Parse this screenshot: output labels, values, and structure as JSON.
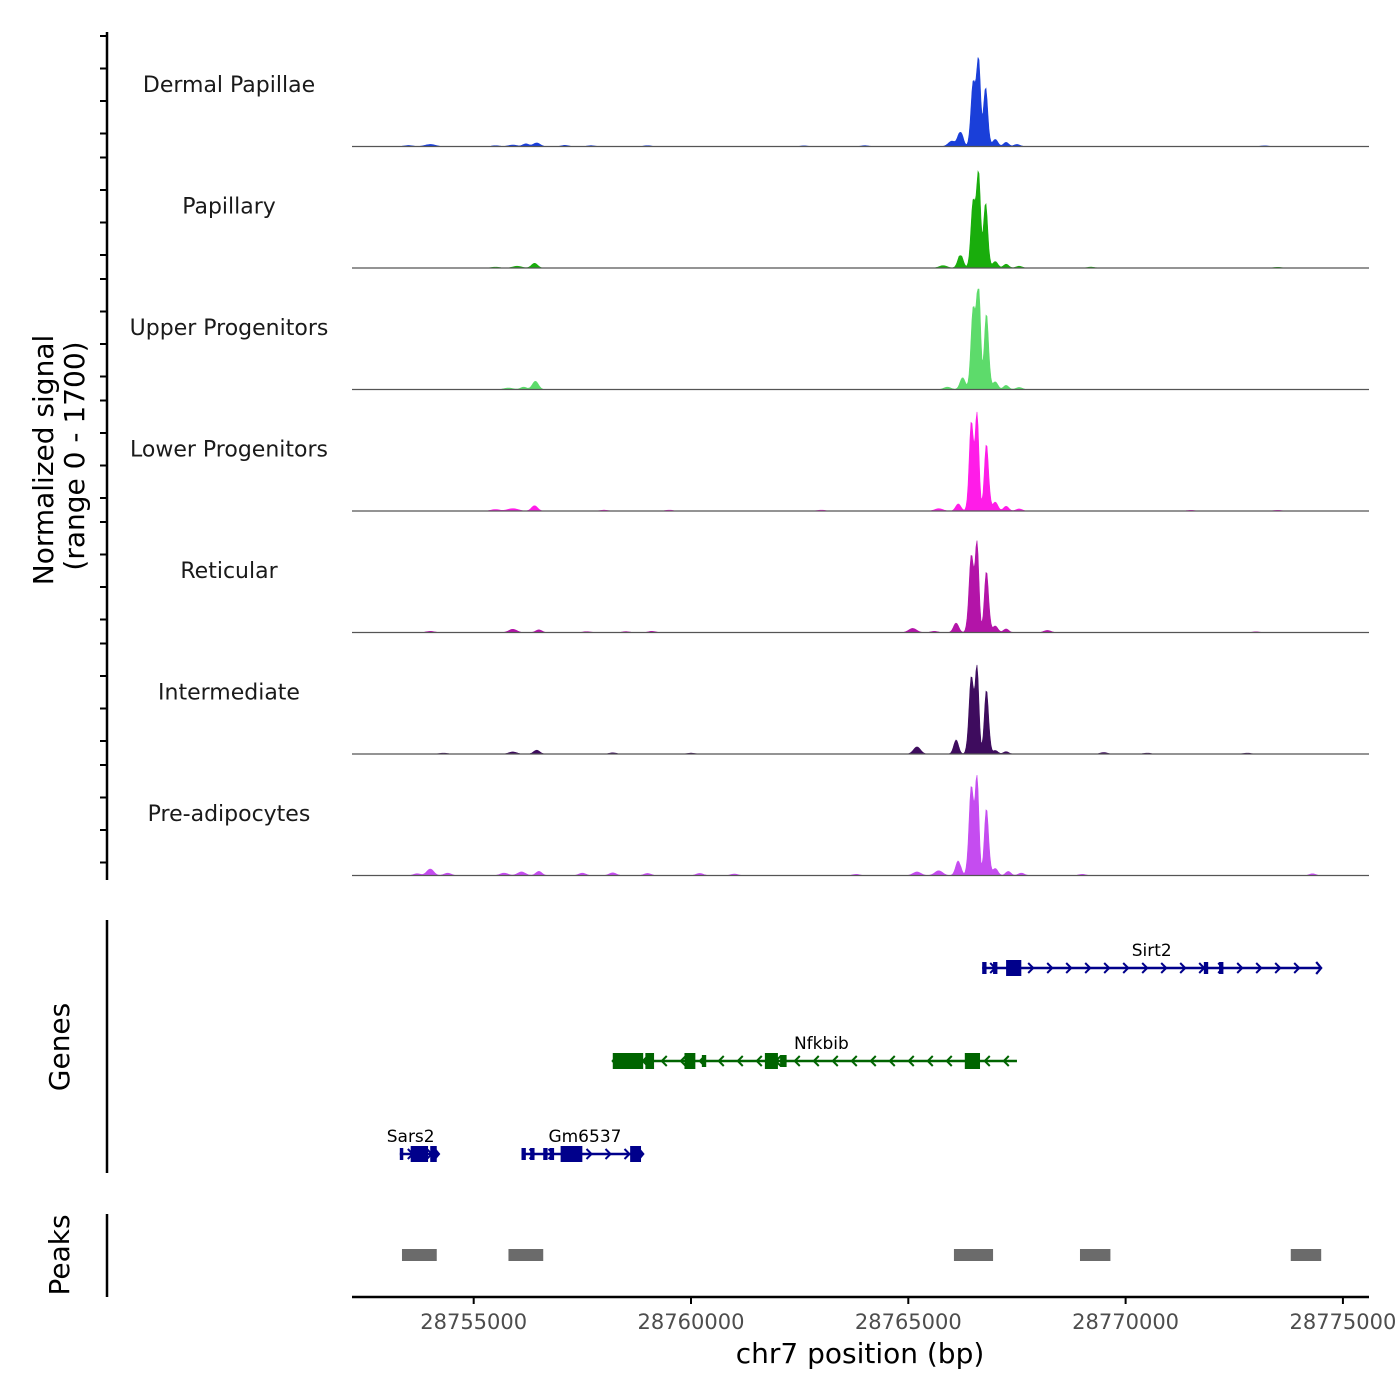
{
  "chart_data": {
    "type": "area",
    "title": "",
    "chromosome": "chr7",
    "xlabel": "chr7 position (bp)",
    "ylabel_line1": "Normalized signal",
    "ylabel_line2": "(range 0 - 1700)",
    "xlim": [
      28752200,
      28775600
    ],
    "xticks": [
      28755000,
      28760000,
      28765000,
      28770000,
      28775000
    ],
    "xtick_labels": [
      "28755000",
      "28760000",
      "28765000",
      "28770000",
      "28775000"
    ],
    "ylim": [
      0,
      1700
    ],
    "tracks": [
      {
        "name": "Dermal Papillae",
        "color": "#1a3fd9",
        "peaks": [
          {
            "center": 28753500,
            "height": 18,
            "width": 90
          },
          {
            "center": 28754000,
            "height": 35,
            "width": 120
          },
          {
            "center": 28755500,
            "height": 15,
            "width": 80
          },
          {
            "center": 28755900,
            "height": 25,
            "width": 100
          },
          {
            "center": 28756200,
            "height": 45,
            "width": 70
          },
          {
            "center": 28756450,
            "height": 60,
            "width": 80
          },
          {
            "center": 28757100,
            "height": 20,
            "width": 80
          },
          {
            "center": 28757700,
            "height": 15,
            "width": 80
          },
          {
            "center": 28759000,
            "height": 15,
            "width": 80
          },
          {
            "center": 28762600,
            "height": 12,
            "width": 80
          },
          {
            "center": 28764000,
            "height": 15,
            "width": 80
          },
          {
            "center": 28766000,
            "height": 90,
            "width": 80
          },
          {
            "center": 28766200,
            "height": 260,
            "width": 60
          },
          {
            "center": 28766500,
            "height": 1150,
            "width": 55
          },
          {
            "center": 28766620,
            "height": 1400,
            "width": 45
          },
          {
            "center": 28766780,
            "height": 1000,
            "width": 50
          },
          {
            "center": 28767000,
            "height": 120,
            "width": 60
          },
          {
            "center": 28767250,
            "height": 70,
            "width": 60
          },
          {
            "center": 28767500,
            "height": 35,
            "width": 70
          },
          {
            "center": 28773200,
            "height": 12,
            "width": 80
          }
        ]
      },
      {
        "name": "Papillary",
        "color": "#19ad0c",
        "peaks": [
          {
            "center": 28755500,
            "height": 15,
            "width": 90
          },
          {
            "center": 28756000,
            "height": 30,
            "width": 100
          },
          {
            "center": 28756400,
            "height": 80,
            "width": 70
          },
          {
            "center": 28765800,
            "height": 40,
            "width": 90
          },
          {
            "center": 28766200,
            "height": 230,
            "width": 60
          },
          {
            "center": 28766500,
            "height": 1200,
            "width": 55
          },
          {
            "center": 28766620,
            "height": 1530,
            "width": 45
          },
          {
            "center": 28766780,
            "height": 1100,
            "width": 50
          },
          {
            "center": 28767000,
            "height": 110,
            "width": 60
          },
          {
            "center": 28767250,
            "height": 65,
            "width": 60
          },
          {
            "center": 28767550,
            "height": 30,
            "width": 70
          },
          {
            "center": 28769200,
            "height": 15,
            "width": 80
          },
          {
            "center": 28773500,
            "height": 12,
            "width": 80
          }
        ]
      },
      {
        "name": "Upper Progenitors",
        "color": "#5ddb6b",
        "peaks": [
          {
            "center": 28755800,
            "height": 25,
            "width": 100
          },
          {
            "center": 28756150,
            "height": 40,
            "width": 70
          },
          {
            "center": 28756420,
            "height": 140,
            "width": 70
          },
          {
            "center": 28765900,
            "height": 40,
            "width": 80
          },
          {
            "center": 28766250,
            "height": 200,
            "width": 60
          },
          {
            "center": 28766500,
            "height": 1450,
            "width": 55
          },
          {
            "center": 28766620,
            "height": 1700,
            "width": 45
          },
          {
            "center": 28766800,
            "height": 1300,
            "width": 50
          },
          {
            "center": 28767000,
            "height": 130,
            "width": 60
          },
          {
            "center": 28767250,
            "height": 70,
            "width": 60
          },
          {
            "center": 28767550,
            "height": 35,
            "width": 70
          }
        ]
      },
      {
        "name": "Lower Progenitors",
        "color": "#ff1ce8",
        "peaks": [
          {
            "center": 28755500,
            "height": 25,
            "width": 100
          },
          {
            "center": 28755900,
            "height": 40,
            "width": 120
          },
          {
            "center": 28756400,
            "height": 90,
            "width": 70
          },
          {
            "center": 28758000,
            "height": 15,
            "width": 80
          },
          {
            "center": 28759500,
            "height": 15,
            "width": 80
          },
          {
            "center": 28763000,
            "height": 15,
            "width": 80
          },
          {
            "center": 28765700,
            "height": 40,
            "width": 90
          },
          {
            "center": 28766150,
            "height": 120,
            "width": 60
          },
          {
            "center": 28766450,
            "height": 1500,
            "width": 50
          },
          {
            "center": 28766580,
            "height": 1650,
            "width": 45
          },
          {
            "center": 28766800,
            "height": 1150,
            "width": 50
          },
          {
            "center": 28767000,
            "height": 150,
            "width": 60
          },
          {
            "center": 28767250,
            "height": 80,
            "width": 60
          },
          {
            "center": 28767550,
            "height": 35,
            "width": 70
          },
          {
            "center": 28771500,
            "height": 12,
            "width": 80
          },
          {
            "center": 28773500,
            "height": 12,
            "width": 80
          }
        ]
      },
      {
        "name": "Reticular",
        "color": "#b314a8",
        "peaks": [
          {
            "center": 28754000,
            "height": 20,
            "width": 90
          },
          {
            "center": 28755900,
            "height": 55,
            "width": 90
          },
          {
            "center": 28756500,
            "height": 45,
            "width": 70
          },
          {
            "center": 28757600,
            "height": 15,
            "width": 80
          },
          {
            "center": 28758500,
            "height": 15,
            "width": 80
          },
          {
            "center": 28759100,
            "height": 20,
            "width": 80
          },
          {
            "center": 28765100,
            "height": 70,
            "width": 90
          },
          {
            "center": 28765600,
            "height": 20,
            "width": 80
          },
          {
            "center": 28766100,
            "height": 160,
            "width": 60
          },
          {
            "center": 28766450,
            "height": 1300,
            "width": 55
          },
          {
            "center": 28766580,
            "height": 1500,
            "width": 45
          },
          {
            "center": 28766800,
            "height": 1050,
            "width": 50
          },
          {
            "center": 28767000,
            "height": 110,
            "width": 60
          },
          {
            "center": 28767250,
            "height": 60,
            "width": 60
          },
          {
            "center": 28768200,
            "height": 35,
            "width": 80
          },
          {
            "center": 28773000,
            "height": 12,
            "width": 80
          }
        ]
      },
      {
        "name": "Intermediate",
        "color": "#3e0c5e",
        "peaks": [
          {
            "center": 28754300,
            "height": 15,
            "width": 90
          },
          {
            "center": 28755900,
            "height": 35,
            "width": 90
          },
          {
            "center": 28756450,
            "height": 65,
            "width": 70
          },
          {
            "center": 28758200,
            "height": 20,
            "width": 80
          },
          {
            "center": 28760000,
            "height": 15,
            "width": 80
          },
          {
            "center": 28765200,
            "height": 120,
            "width": 80
          },
          {
            "center": 28766100,
            "height": 240,
            "width": 55
          },
          {
            "center": 28766450,
            "height": 1300,
            "width": 55
          },
          {
            "center": 28766580,
            "height": 1450,
            "width": 45
          },
          {
            "center": 28766800,
            "height": 1100,
            "width": 50
          },
          {
            "center": 28767000,
            "height": 60,
            "width": 60
          },
          {
            "center": 28767250,
            "height": 40,
            "width": 60
          },
          {
            "center": 28769500,
            "height": 25,
            "width": 80
          },
          {
            "center": 28770500,
            "height": 15,
            "width": 80
          },
          {
            "center": 28772800,
            "height": 15,
            "width": 80
          }
        ]
      },
      {
        "name": "Pre-adipocytes",
        "color": "#c54cf0",
        "peaks": [
          {
            "center": 28753700,
            "height": 30,
            "width": 80
          },
          {
            "center": 28754000,
            "height": 110,
            "width": 80
          },
          {
            "center": 28754400,
            "height": 40,
            "width": 80
          },
          {
            "center": 28755700,
            "height": 40,
            "width": 90
          },
          {
            "center": 28756100,
            "height": 60,
            "width": 90
          },
          {
            "center": 28756500,
            "height": 70,
            "width": 70
          },
          {
            "center": 28757500,
            "height": 40,
            "width": 80
          },
          {
            "center": 28758200,
            "height": 45,
            "width": 80
          },
          {
            "center": 28759000,
            "height": 35,
            "width": 80
          },
          {
            "center": 28760200,
            "height": 35,
            "width": 80
          },
          {
            "center": 28761000,
            "height": 25,
            "width": 80
          },
          {
            "center": 28763800,
            "height": 20,
            "width": 80
          },
          {
            "center": 28765200,
            "height": 60,
            "width": 90
          },
          {
            "center": 28765700,
            "height": 80,
            "width": 90
          },
          {
            "center": 28766150,
            "height": 250,
            "width": 60
          },
          {
            "center": 28766450,
            "height": 1500,
            "width": 55
          },
          {
            "center": 28766580,
            "height": 1650,
            "width": 45
          },
          {
            "center": 28766800,
            "height": 1150,
            "width": 50
          },
          {
            "center": 28767000,
            "height": 120,
            "width": 60
          },
          {
            "center": 28767300,
            "height": 70,
            "width": 60
          },
          {
            "center": 28767600,
            "height": 40,
            "width": 70
          },
          {
            "center": 28769000,
            "height": 20,
            "width": 80
          },
          {
            "center": 28774300,
            "height": 30,
            "width": 70
          }
        ]
      }
    ],
    "genes_label": "Genes",
    "genes": [
      {
        "name": "Sirt2",
        "strand": "+",
        "color": "#00008b",
        "start": 28766700,
        "end": 28774500,
        "label_at": 28770600,
        "row": 1,
        "exons": [
          [
            28766700,
            28766800,
            "thin"
          ],
          [
            28766950,
            28767050,
            "thin"
          ],
          [
            28767250,
            28767600,
            "thick"
          ],
          [
            28771800,
            28771900,
            "thin"
          ],
          [
            28772150,
            28772250,
            "thin"
          ]
        ]
      },
      {
        "name": "Nfkbib",
        "strand": "-",
        "color": "#006400",
        "start": 28758200,
        "end": 28767500,
        "label_at": 28763000,
        "row": 2,
        "exons": [
          [
            28758200,
            28758900,
            "thick"
          ],
          [
            28758950,
            28759150,
            "thick"
          ],
          [
            28759850,
            28760100,
            "thick"
          ],
          [
            28760250,
            28760350,
            "thin"
          ],
          [
            28761700,
            28762000,
            "thick"
          ],
          [
            28762050,
            28762200,
            "thin"
          ],
          [
            28766300,
            28766650,
            "thick"
          ]
        ]
      },
      {
        "name": "Sars2",
        "strand": "+",
        "color": "#00008b",
        "start": 28753300,
        "end": 28754200,
        "label_at": 28753550,
        "row": 3,
        "exons": [
          [
            28753300,
            28753380,
            "thin"
          ],
          [
            28753550,
            28753950,
            "thick"
          ],
          [
            28754000,
            28754150,
            "thick"
          ]
        ]
      },
      {
        "name": "Gm6537",
        "strand": "+",
        "color": "#00008b",
        "start": 28756100,
        "end": 28758900,
        "label_at": 28757560,
        "row": 3,
        "exons": [
          [
            28756100,
            28756200,
            "thin"
          ],
          [
            28756300,
            28756400,
            "thin"
          ],
          [
            28756600,
            28756700,
            "thin"
          ],
          [
            28756750,
            28756850,
            "thin"
          ],
          [
            28757000,
            28757500,
            "thick"
          ],
          [
            28758600,
            28758850,
            "thick"
          ]
        ]
      }
    ],
    "peaks_label": "Peaks",
    "peak_regions": [
      [
        28753350,
        28754150
      ],
      [
        28755800,
        28756600
      ],
      [
        28766050,
        28766950
      ],
      [
        28768950,
        28769650
      ],
      [
        28773800,
        28774500
      ]
    ],
    "colors": {
      "peak_region": "#6b6b6b",
      "axis": "#000000",
      "baseline": "#555555"
    }
  }
}
